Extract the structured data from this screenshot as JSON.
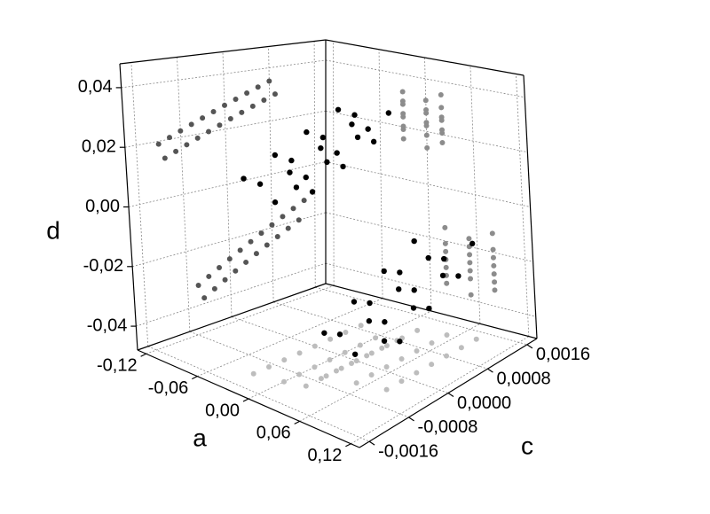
{
  "chart_data": {
    "type": "scatter3d",
    "xlabel": "a",
    "ylabel": "c",
    "zlabel": "d",
    "xlim": [
      -0.13,
      0.13
    ],
    "ylim": [
      -0.0018,
      0.0018
    ],
    "zlim": [
      -0.048,
      0.048
    ],
    "xticks": [
      {
        "value": -0.12,
        "label": "-0,12"
      },
      {
        "value": -0.06,
        "label": "-0,06"
      },
      {
        "value": 0,
        "label": "0,00"
      },
      {
        "value": 0.06,
        "label": "0,06"
      },
      {
        "value": 0.12,
        "label": "0,12"
      }
    ],
    "yticks": [
      {
        "value": -0.0016,
        "label": "-0,0016"
      },
      {
        "value": -0.0008,
        "label": "-0,0008"
      },
      {
        "value": 0,
        "label": "0,0000"
      },
      {
        "value": 0.0008,
        "label": "0,0008"
      },
      {
        "value": 0.0016,
        "label": "0,0016"
      }
    ],
    "zticks": [
      {
        "value": -0.04,
        "label": "-0,04"
      },
      {
        "value": -0.02,
        "label": "-0,02"
      },
      {
        "value": 0,
        "label": "0,00"
      },
      {
        "value": 0.02,
        "label": "0,02"
      },
      {
        "value": 0.04,
        "label": "0,04"
      }
    ],
    "grid": true,
    "projections": {
      "x_wall": "#555555",
      "y_wall": "#8c8c8c",
      "floor": "#bdbdbd"
    },
    "series": [
      {
        "color": "#000000",
        "x": [
          -0.03,
          0,
          0.02,
          -0.03,
          0,
          0.02,
          -0.03,
          0,
          0.02,
          -0.03,
          0,
          0.02,
          -0.03,
          0,
          0.02,
          -0.03,
          0,
          0.02,
          -0.03,
          0,
          0.02,
          -0.03
        ],
        "y": [
          -0.0012,
          -0.0011,
          -0.001,
          -0.0009,
          -0.0008,
          -0.0007,
          -0.0006,
          -0.0005,
          -0.0004,
          -0.0003,
          -0.0002,
          -0.0001,
          0,
          0.0001,
          0.0002,
          0.0003,
          0.0004,
          0.0005,
          0.0006,
          0.0007,
          0.0008,
          0.0009
        ],
        "z": [
          0.019,
          0.0138,
          0.0206,
          0.0154,
          0.0222,
          0.017,
          0.0238,
          0.0186,
          0.0254,
          0.0202,
          0.027,
          0.0218,
          0.0286,
          0.0234,
          0.0302,
          0.025,
          0.0318,
          0.0266,
          0.0334,
          0.0282,
          0.035,
          0.0298
        ]
      },
      {
        "color": "#000000",
        "x": [
          0.02,
          0.05,
          0.08,
          0.02,
          0.05,
          0.08,
          0.02,
          0.05,
          0.08,
          0.02,
          0.05,
          0.08,
          0.02,
          0.05,
          0.08,
          0.02,
          0.05,
          0.08,
          0.02,
          0.05,
          0.08
        ],
        "y": [
          -0.0006,
          -0.0005,
          -0.0004,
          -0.0003,
          -0.0002,
          -0.0001,
          0,
          0.0001,
          0.0002,
          0.0003,
          0.0004,
          0.0005,
          0.0006,
          0.0007,
          0.0008,
          0.0009,
          0.001,
          0.0011,
          0.0012,
          0.0013,
          0.0014
        ],
        "z": [
          -0.033,
          -0.038,
          -0.031,
          -0.036,
          -0.029,
          -0.034,
          -0.027,
          -0.032,
          -0.025,
          -0.03,
          -0.023,
          -0.028,
          -0.021,
          -0.026,
          -0.019,
          -0.024,
          -0.017,
          -0.022,
          -0.015,
          -0.02,
          -0.013
        ]
      }
    ]
  }
}
